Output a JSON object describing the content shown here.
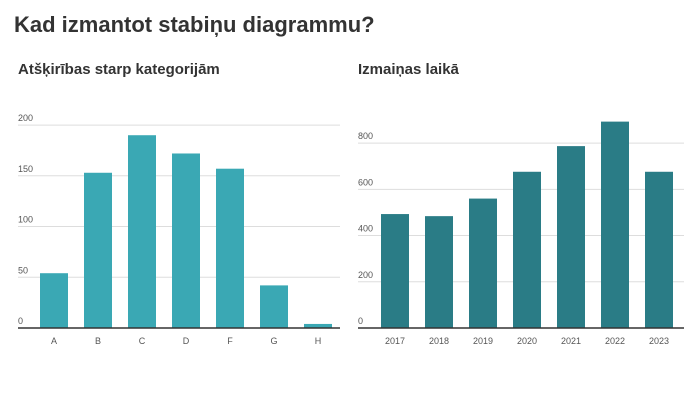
{
  "title": "Kad izmantot stabiņu diagrammu?",
  "chart_data": [
    {
      "type": "bar",
      "title": "Atšķirības starp kategorijām",
      "categories": [
        "A",
        "B",
        "C",
        "D",
        "F",
        "G",
        "H"
      ],
      "values": [
        54,
        153,
        190,
        172,
        157,
        42,
        4
      ],
      "color": "#3aa8b4",
      "ylim": [
        0,
        205
      ],
      "yticks": [
        0,
        50,
        100,
        150,
        200
      ],
      "grid": true
    },
    {
      "type": "bar",
      "title": "Izmaiņas laikā",
      "categories": [
        "2017",
        "2018",
        "2019",
        "2020",
        "2021",
        "2022",
        "2023"
      ],
      "values": [
        493,
        484,
        560,
        676,
        787,
        893,
        676
      ],
      "color": "#2a7c86",
      "ylim": [
        0,
        900
      ],
      "yticks": [
        0,
        200,
        400,
        600,
        800
      ],
      "grid": true
    }
  ]
}
